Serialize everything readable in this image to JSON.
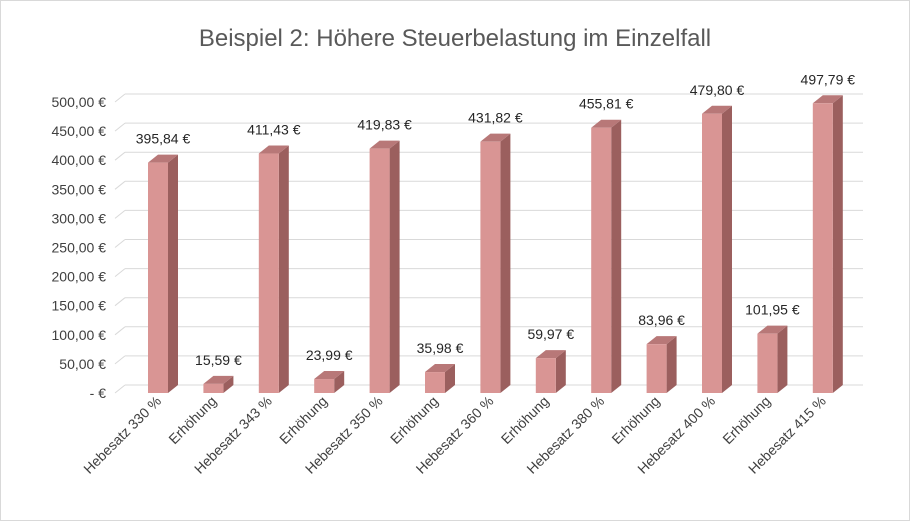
{
  "chart_data": {
    "type": "bar",
    "title": "Beispiel 2: Höhere Steuerbelastung im Einzelfall",
    "categories": [
      "Hebesatz 330 %",
      "Erhöhung",
      "Hebesatz 343 %",
      "Erhöhung",
      "Hebesatz 350 %",
      "Erhöhung",
      "Hebesatz 360 %",
      "Erhöhung",
      "Hebesatz 380 %",
      "Erhöhung",
      "Hebesatz 400 %",
      "Erhöhung",
      "Hebesatz 415 %"
    ],
    "values": [
      395.84,
      15.59,
      411.43,
      23.99,
      419.83,
      35.98,
      431.82,
      59.97,
      455.81,
      83.96,
      479.8,
      101.95,
      497.79
    ],
    "data_labels": [
      "395,84 €",
      "15,59 €",
      "411,43 €",
      "23,99 €",
      "419,83 €",
      "35,98 €",
      "431,82 €",
      "59,97 €",
      "455,81 €",
      "83,96 €",
      "479,80 €",
      "101,95 €",
      "497,79 €"
    ],
    "y_ticks": [
      0,
      50,
      100,
      150,
      200,
      250,
      300,
      350,
      400,
      450,
      500
    ],
    "y_tick_labels": [
      "-  €",
      "50,00 €",
      "100,00 €",
      "150,00 €",
      "200,00 €",
      "250,00 €",
      "300,00 €",
      "350,00 €",
      "400,00 €",
      "450,00 €",
      "500,00 €"
    ],
    "ylim": [
      0,
      500
    ],
    "grid": true,
    "legend": "none",
    "three_d": true,
    "colors": {
      "bar_front": "#d99594",
      "bar_side": "#9b5f5e",
      "bar_top": "#b87878",
      "grid": "#d9d9d9",
      "frame": "#d9d9d9"
    }
  }
}
